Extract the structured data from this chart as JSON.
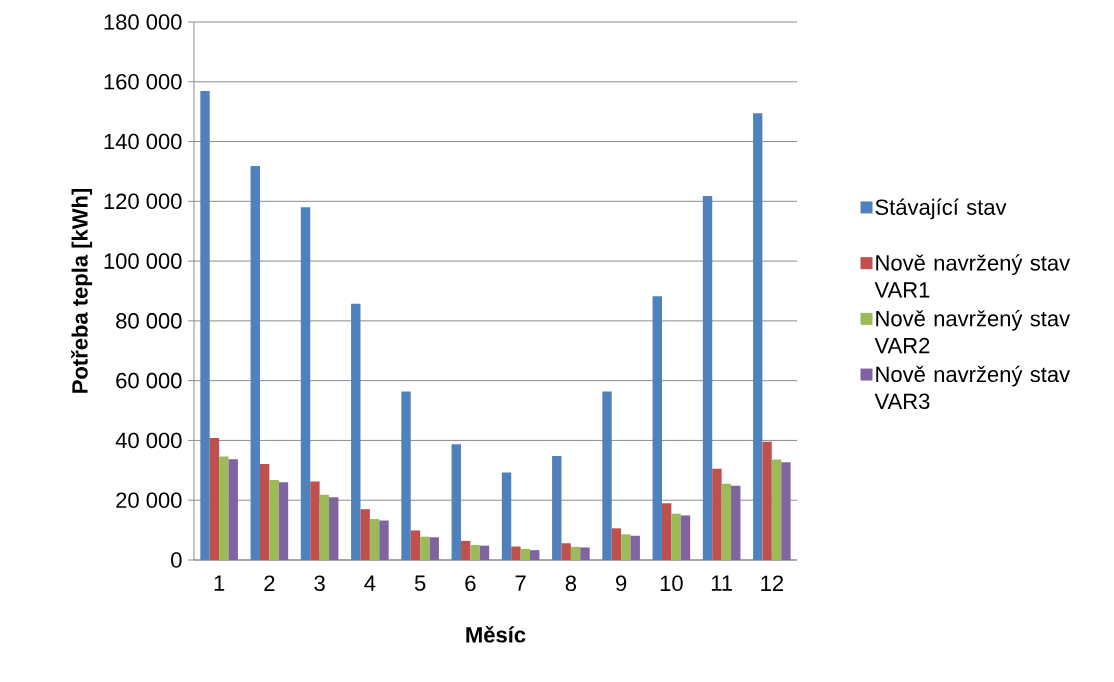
{
  "chart_data": {
    "type": "bar",
    "xlabel": "Měsíc",
    "ylabel": "Potřeba tepla [kWh]",
    "categories": [
      "1",
      "2",
      "3",
      "4",
      "5",
      "6",
      "7",
      "8",
      "9",
      "10",
      "11",
      "12"
    ],
    "series": [
      {
        "name": "Stávající stav",
        "color": "#4f81bd",
        "values": [
          156900,
          131800,
          118000,
          85700,
          56400,
          38700,
          29300,
          34800,
          56400,
          88200,
          121800,
          149500
        ]
      },
      {
        "name": "Nově navržený stav VAR1",
        "color": "#c0504d",
        "values": [
          40900,
          32100,
          26300,
          17000,
          9900,
          6400,
          4500,
          5600,
          10600,
          19000,
          30500,
          39600
        ]
      },
      {
        "name": "Nově navržený stav VAR2",
        "color": "#9bbb59",
        "values": [
          34600,
          26800,
          21800,
          13700,
          7800,
          5000,
          3700,
          4400,
          8600,
          15500,
          25500,
          33600
        ]
      },
      {
        "name": "Nově navržený stav VAR3",
        "color": "#8064a2",
        "values": [
          33700,
          26000,
          21000,
          13200,
          7600,
          4800,
          3300,
          4200,
          8100,
          14900,
          24800,
          32700
        ]
      }
    ],
    "ylim": [
      0,
      180000
    ],
    "yticks": [
      0,
      {
        "value": 20000,
        "label": "20 000"
      },
      {
        "value": 40000,
        "label": "40 000"
      },
      {
        "value": 60000,
        "label": "60 000"
      },
      {
        "value": 80000,
        "label": "80 000"
      },
      {
        "value": 100000,
        "label": "100 000"
      },
      {
        "value": 120000,
        "label": "120 000"
      },
      {
        "value": 140000,
        "label": "140 000"
      },
      {
        "value": 160000,
        "label": "160 000"
      },
      {
        "value": 180000,
        "label": "180 000"
      }
    ],
    "grid": "y",
    "legend": "right"
  }
}
